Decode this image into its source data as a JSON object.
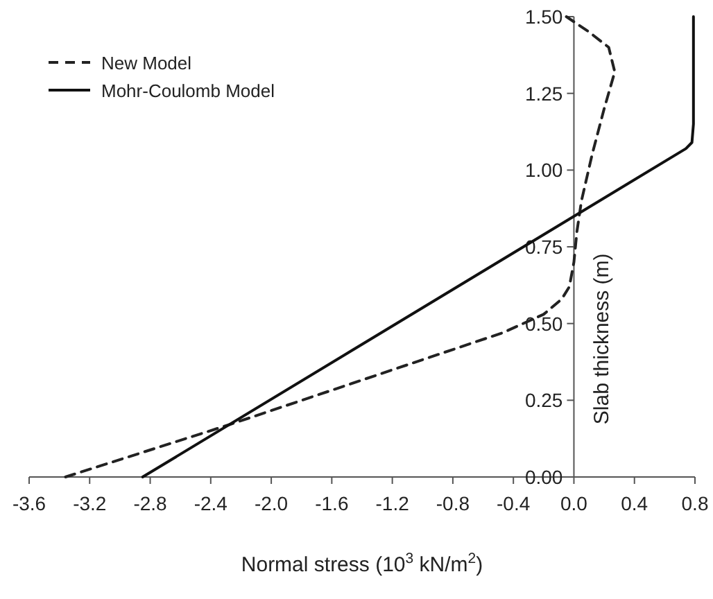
{
  "chart_data": {
    "type": "line",
    "xlabel": "Normal stress (10$^{3}$ kN/m$^{2}$)",
    "ylabel": "Slab thickness (m)",
    "xlim": [
      -3.6,
      0.8
    ],
    "xticks": [
      -3.6,
      -3.2,
      -2.8,
      -2.4,
      {
        "value": -2,
        "label": "-2.0"
      },
      -1.6,
      -1.2,
      -0.8,
      -0.4,
      {
        "value": 0,
        "label": "0.0"
      },
      0.4,
      0.8
    ],
    "ylim": [
      0,
      1.5
    ],
    "yticks": [
      {
        "value": 0,
        "label": "0.00"
      },
      0.25,
      {
        "value": 0.5,
        "label": "0.50"
      },
      0.75,
      {
        "value": 1,
        "label": "1.00"
      },
      1.25,
      {
        "value": 1.5,
        "label": "1.50"
      }
    ],
    "grid": false,
    "legend": "top left",
    "marker": "none",
    "series": [
      {
        "name": "New Model",
        "color": "#222222",
        "line_style": "dashed",
        "x": [
          -3.36,
          -2.28,
          -0.47,
          -0.2,
          -0.08,
          -0.03,
          0,
          0.02,
          0.05,
          0.12,
          0.2,
          0.27,
          0.23,
          0.1,
          -0.05
        ],
        "values": [
          0,
          0.17,
          0.47,
          0.53,
          0.58,
          0.62,
          0.7,
          0.8,
          0.9,
          1.05,
          1.2,
          1.32,
          1.4,
          1.45,
          1.5
        ]
      },
      {
        "name": "Mohr-Coulomb Model",
        "color": "#111111",
        "line_style": "solid",
        "x": [
          -2.85,
          0.74,
          0.78,
          0.79,
          0.79
        ],
        "values": [
          0,
          1.07,
          1.09,
          1.15,
          1.5
        ]
      }
    ]
  }
}
